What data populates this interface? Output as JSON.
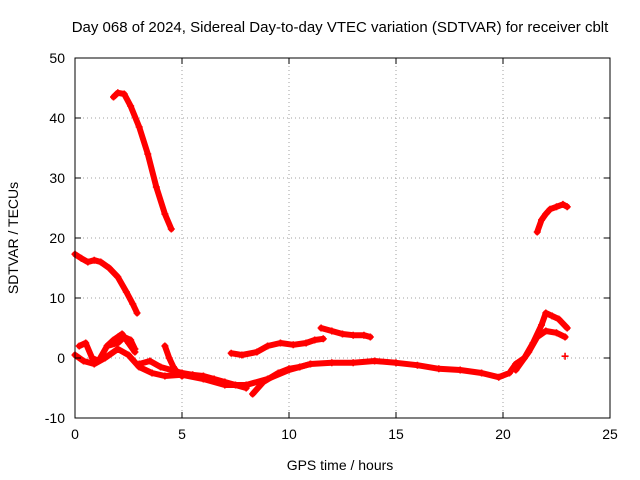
{
  "chart_data": {
    "type": "scatter",
    "title": "Day 068 of 2024, Sidereal Day-to-day VTEC variation (SDTVAR) for receiver cblt",
    "xlabel": "GPS time / hours",
    "ylabel": "SDTVAR / TECUs",
    "xlim": [
      0,
      25
    ],
    "ylim": [
      -10,
      50
    ],
    "xticks": [
      0,
      5,
      10,
      15,
      20,
      25
    ],
    "yticks": [
      -10,
      0,
      10,
      20,
      30,
      40,
      50
    ],
    "grid": true,
    "marker_color": "#ff0000",
    "series": [
      {
        "name": "arc-high-1",
        "x": [
          1.8,
          2.0,
          2.3,
          2.6,
          3.0,
          3.4,
          3.8,
          4.2,
          4.5
        ],
        "y": [
          43.5,
          44.2,
          44.0,
          42.0,
          38.5,
          34.0,
          28.5,
          24.0,
          21.5
        ]
      },
      {
        "name": "arc-mid-1",
        "x": [
          0.0,
          0.3,
          0.6,
          0.9,
          1.2,
          1.6,
          2.0,
          2.4,
          2.7,
          2.9
        ],
        "y": [
          17.3,
          16.6,
          16.0,
          16.3,
          16.0,
          15.0,
          13.5,
          11.0,
          9.0,
          7.5
        ]
      },
      {
        "name": "arc-late-high",
        "x": [
          21.6,
          21.8,
          22.0,
          22.2,
          22.5,
          22.8,
          23.0
        ],
        "y": [
          21.0,
          23.0,
          24.0,
          24.8,
          25.2,
          25.6,
          25.2
        ]
      },
      {
        "name": "arc-late-mid",
        "x": [
          20.6,
          21.0,
          21.4,
          21.8,
          22.0,
          22.3,
          22.6,
          23.0
        ],
        "y": [
          -1.0,
          0.0,
          2.5,
          5.5,
          7.5,
          7.0,
          6.5,
          5.0
        ]
      },
      {
        "name": "arc-late-low",
        "x": [
          20.6,
          21.2,
          21.6,
          22.0,
          22.5,
          22.9
        ],
        "y": [
          -2.0,
          1.0,
          3.5,
          4.5,
          4.2,
          3.5
        ]
      },
      {
        "name": "arc-main-1",
        "x": [
          0.0,
          0.4,
          0.9,
          1.4,
          2.0,
          2.5,
          3.0,
          3.6,
          4.2,
          5.0,
          6.0,
          7.0,
          8.0,
          9.0,
          10.0,
          11.0,
          12.0,
          13.0,
          14.0,
          15.0,
          16.0,
          17.0,
          18.0,
          19.0,
          19.8,
          20.3,
          20.6
        ],
        "y": [
          0.5,
          -0.5,
          -1.0,
          0.0,
          1.5,
          0.5,
          -1.5,
          -2.5,
          -3.0,
          -2.8,
          -3.5,
          -4.5,
          -4.5,
          -3.5,
          -2.0,
          -1.0,
          -0.8,
          -0.8,
          -0.5,
          -0.8,
          -1.2,
          -1.8,
          -2.0,
          -2.5,
          -3.2,
          -2.5,
          -1.0
        ]
      },
      {
        "name": "arc-main-2",
        "x": [
          3.0,
          3.5,
          4.0,
          4.5,
          5.0,
          5.5,
          6.0,
          6.5,
          7.0,
          7.5,
          8.0
        ],
        "y": [
          -1.0,
          -0.5,
          -1.5,
          -2.0,
          -2.5,
          -2.8,
          -3.0,
          -3.5,
          -4.0,
          -4.5,
          -5.0
        ]
      },
      {
        "name": "arc-low-1",
        "x": [
          8.3,
          8.8,
          9.5,
          10.0,
          10.5,
          11.0
        ],
        "y": [
          -6.0,
          -4.0,
          -2.5,
          -1.8,
          -1.5,
          -1.0
        ]
      },
      {
        "name": "arc-mid-2",
        "x": [
          7.3,
          7.8,
          8.5,
          9.0,
          9.6,
          10.2,
          10.8,
          11.2,
          11.6
        ],
        "y": [
          0.8,
          0.5,
          1.0,
          2.0,
          2.5,
          2.2,
          2.5,
          3.0,
          3.2
        ]
      },
      {
        "name": "arc-mid-3",
        "x": [
          11.5,
          12.0,
          12.5,
          13.0,
          13.5,
          13.8
        ],
        "y": [
          5.0,
          4.5,
          4.0,
          3.8,
          3.8,
          3.5
        ]
      },
      {
        "name": "arc-early-low",
        "x": [
          0.2,
          0.5,
          0.8,
          1.1,
          1.5,
          2.0,
          2.3,
          2.6,
          2.8
        ],
        "y": [
          2.0,
          2.5,
          0.0,
          -0.5,
          2.0,
          2.5,
          3.5,
          3.0,
          1.5
        ]
      },
      {
        "name": "arc-early-mid",
        "x": [
          1.5,
          1.8,
          2.0,
          2.2,
          2.5,
          2.8
        ],
        "y": [
          2.0,
          3.0,
          3.5,
          4.0,
          2.5,
          1.0
        ]
      },
      {
        "name": "arc-early-tail",
        "x": [
          4.2,
          4.4,
          4.6,
          4.8,
          5.0
        ],
        "y": [
          2.0,
          0.0,
          -1.5,
          -2.5,
          -3.0
        ]
      },
      {
        "name": "isolated-point",
        "x": [
          22.9
        ],
        "y": [
          0.3
        ]
      }
    ]
  }
}
